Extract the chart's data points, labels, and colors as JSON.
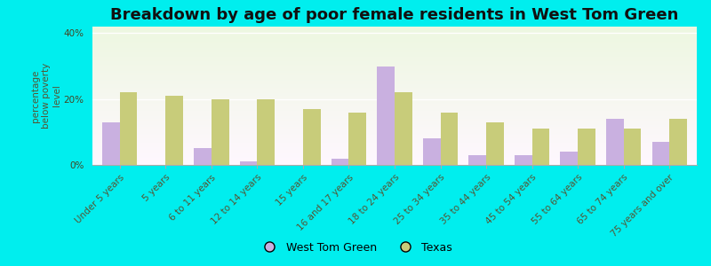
{
  "title": "Breakdown by age of poor female residents in West Tom Green",
  "categories": [
    "Under 5 years",
    "5 years",
    "6 to 11 years",
    "12 to 14 years",
    "15 years",
    "16 and 17 years",
    "18 to 24 years",
    "25 to 34 years",
    "35 to 44 years",
    "45 to 54 years",
    "55 to 64 years",
    "65 to 74 years",
    "75 years and over"
  ],
  "west_tom_green": [
    13.0,
    0.0,
    5.0,
    1.0,
    0.0,
    2.0,
    30.0,
    8.0,
    3.0,
    3.0,
    4.0,
    14.0,
    7.0
  ],
  "texas": [
    22.0,
    21.0,
    20.0,
    20.0,
    17.0,
    16.0,
    22.0,
    16.0,
    13.0,
    11.0,
    11.0,
    11.0,
    14.0
  ],
  "wtg_color": "#c9b0e0",
  "texas_color": "#c8cc7a",
  "background_color": "#00eeee",
  "ylabel": "percentage\nbelow poverty\nlevel",
  "ylim": [
    0,
    42
  ],
  "yticks": [
    0,
    20,
    40
  ],
  "ytick_labels": [
    "0%",
    "20%",
    "40%"
  ],
  "bar_width": 0.38,
  "legend_wtg": "West Tom Green",
  "legend_texas": "Texas",
  "title_fontsize": 13,
  "axis_label_fontsize": 7.5,
  "tick_fontsize": 7.5
}
